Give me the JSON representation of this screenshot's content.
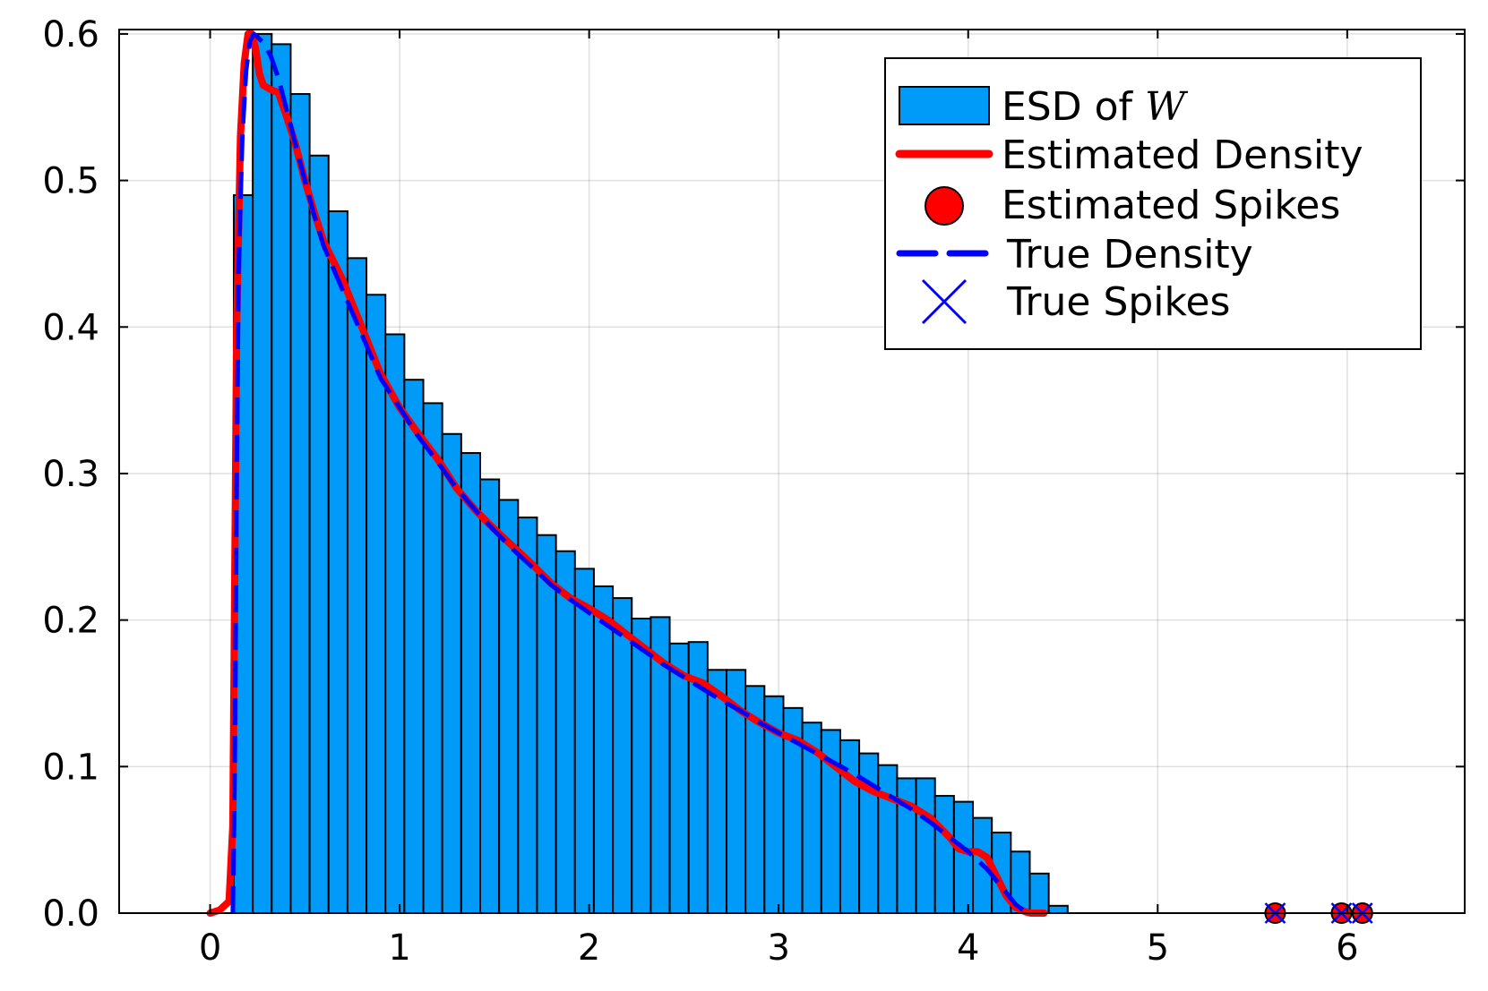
{
  "chart_data": {
    "type": "bar",
    "title": "",
    "xlabel": "",
    "ylabel": "",
    "xlim": [
      -0.48,
      6.62
    ],
    "ylim": [
      0,
      0.603
    ],
    "xticks": [
      0,
      1,
      2,
      3,
      4,
      5,
      6
    ],
    "yticks": [
      0,
      0.1,
      0.2,
      0.3,
      0.4,
      0.5,
      0.6
    ],
    "xtick_labels": [
      "0",
      "1",
      "2",
      "3",
      "4",
      "5",
      "6"
    ],
    "ytick_labels": [
      "0.0",
      "0.1",
      "0.2",
      "0.3",
      "0.4",
      "0.5",
      "0.6"
    ],
    "grid": true,
    "legend_position": "top-right",
    "histogram": {
      "name": "ESD of",
      "name_math": "W",
      "color": "#009af9",
      "bin_start": 0.125,
      "bin_width": 0.1,
      "values": [
        0.49,
        0.6,
        0.593,
        0.559,
        0.517,
        0.479,
        0.447,
        0.422,
        0.395,
        0.364,
        0.348,
        0.327,
        0.314,
        0.296,
        0.282,
        0.27,
        0.258,
        0.247,
        0.235,
        0.223,
        0.215,
        0.201,
        0.202,
        0.184,
        0.185,
        0.166,
        0.166,
        0.155,
        0.148,
        0.14,
        0.13,
        0.125,
        0.118,
        0.109,
        0.101,
        0.092,
        0.092,
        0.08,
        0.076,
        0.065,
        0.055,
        0.042,
        0.027,
        0.005
      ]
    },
    "series": [
      {
        "name": "Estimated Density",
        "type": "line",
        "color": "#ff0000",
        "x": [
          0.0,
          0.05,
          0.1,
          0.12,
          0.14,
          0.16,
          0.18,
          0.2,
          0.22,
          0.24,
          0.26,
          0.28,
          0.32,
          0.36,
          0.4,
          0.45,
          0.5,
          0.55,
          0.6,
          0.7,
          0.8,
          0.9,
          1.0,
          1.1,
          1.2,
          1.3,
          1.4,
          1.5,
          1.6,
          1.7,
          1.8,
          1.9,
          2.0,
          2.1,
          2.2,
          2.3,
          2.4,
          2.5,
          2.6,
          2.7,
          2.8,
          2.9,
          3.0,
          3.1,
          3.2,
          3.3,
          3.4,
          3.5,
          3.6,
          3.7,
          3.8,
          3.9,
          3.95,
          4.0,
          4.05,
          4.1,
          4.15,
          4.2,
          4.25,
          4.3,
          4.33,
          4.36,
          4.4
        ],
        "y": [
          0.0,
          0.002,
          0.008,
          0.06,
          0.4,
          0.53,
          0.58,
          0.6,
          0.6,
          0.59,
          0.573,
          0.565,
          0.562,
          0.56,
          0.545,
          0.525,
          0.5,
          0.478,
          0.458,
          0.432,
          0.4,
          0.368,
          0.345,
          0.327,
          0.31,
          0.29,
          0.275,
          0.262,
          0.25,
          0.238,
          0.225,
          0.215,
          0.208,
          0.2,
          0.19,
          0.18,
          0.17,
          0.162,
          0.157,
          0.148,
          0.138,
          0.13,
          0.123,
          0.118,
          0.11,
          0.1,
          0.09,
          0.083,
          0.078,
          0.073,
          0.065,
          0.052,
          0.044,
          0.042,
          0.042,
          0.038,
          0.025,
          0.012,
          0.004,
          0.001,
          0.0,
          0.0,
          0.0
        ]
      },
      {
        "name": "True Density",
        "type": "line",
        "color": "#0000ff",
        "x": [
          0.12,
          0.13,
          0.14,
          0.15,
          0.17,
          0.19,
          0.21,
          0.23,
          0.25,
          0.28,
          0.32,
          0.36,
          0.4,
          0.45,
          0.5,
          0.55,
          0.6,
          0.7,
          0.8,
          0.9,
          1.0,
          1.1,
          1.2,
          1.3,
          1.4,
          1.5,
          1.6,
          1.7,
          1.8,
          1.9,
          2.0,
          2.1,
          2.2,
          2.3,
          2.4,
          2.5,
          2.6,
          2.7,
          2.8,
          2.9,
          3.0,
          3.1,
          3.2,
          3.3,
          3.4,
          3.5,
          3.6,
          3.7,
          3.8,
          3.9,
          4.0,
          4.1,
          4.15,
          4.2,
          4.25,
          4.28,
          4.3,
          4.32,
          4.34
        ],
        "y": [
          0.0,
          0.1,
          0.3,
          0.44,
          0.53,
          0.575,
          0.595,
          0.6,
          0.598,
          0.594,
          0.585,
          0.57,
          0.55,
          0.525,
          0.5,
          0.476,
          0.455,
          0.425,
          0.395,
          0.365,
          0.345,
          0.325,
          0.308,
          0.29,
          0.275,
          0.261,
          0.248,
          0.236,
          0.224,
          0.214,
          0.205,
          0.196,
          0.187,
          0.178,
          0.169,
          0.161,
          0.153,
          0.145,
          0.138,
          0.13,
          0.123,
          0.116,
          0.109,
          0.102,
          0.095,
          0.087,
          0.079,
          0.071,
          0.062,
          0.052,
          0.042,
          0.03,
          0.022,
          0.014,
          0.006,
          0.003,
          0.001,
          0.0,
          0.0
        ]
      },
      {
        "name": "Estimated Spikes",
        "type": "scatter",
        "color": "#ff0000",
        "marker": "circle",
        "x": [
          5.62,
          5.97,
          6.08
        ],
        "y": [
          0.0,
          0.0,
          0.0
        ]
      },
      {
        "name": "True Spikes",
        "type": "scatter",
        "color": "#0000ff",
        "marker": "x",
        "x": [
          5.62,
          5.97,
          6.08
        ],
        "y": [
          0.0,
          0.0,
          0.0
        ]
      }
    ]
  }
}
